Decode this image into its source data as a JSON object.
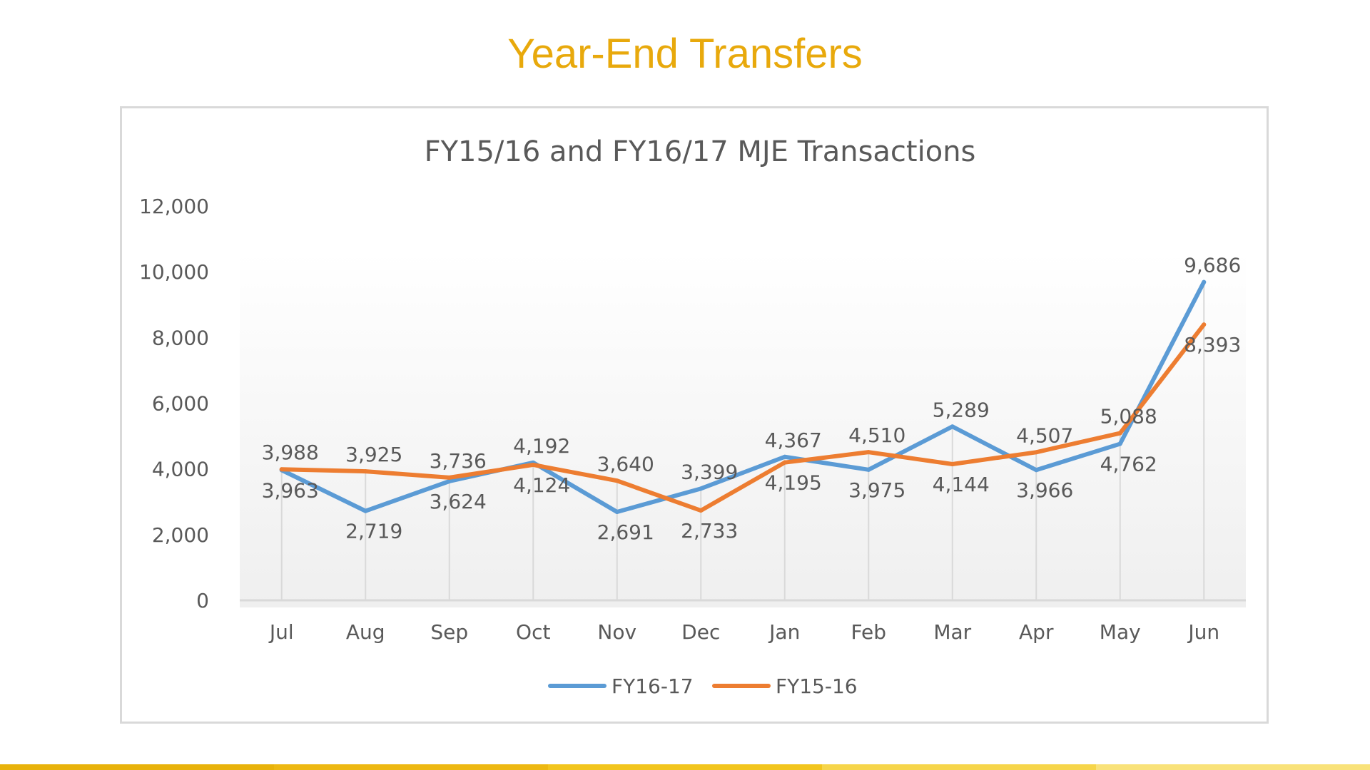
{
  "slide": {
    "title": "Year-End Transfers",
    "title_color": "#E8A90C",
    "bottom_bar_colors": [
      "#E8B20A",
      "#EDB812",
      "#F2C51E",
      "#F6D54A",
      "#F9E27A"
    ]
  },
  "chart_data": {
    "type": "line",
    "title": "FY15/16 and FY16/17 MJE Transactions",
    "xlabel": "",
    "ylabel": "",
    "categories": [
      "Jul",
      "Aug",
      "Sep",
      "Oct",
      "Nov",
      "Dec",
      "Jan",
      "Feb",
      "Mar",
      "Apr",
      "May",
      "Jun"
    ],
    "series": [
      {
        "name": "FY16-17",
        "color": "#5B9BD5",
        "values": [
          3963,
          2719,
          3624,
          4192,
          2691,
          3399,
          4367,
          3975,
          5289,
          3966,
          4762,
          9686
        ],
        "labels": [
          "3,963",
          "2,719",
          "3,624",
          "4,192",
          "2,691",
          "3,399",
          "4,367",
          "3,975",
          "5,289",
          "3,966",
          "4,762",
          "9,686"
        ]
      },
      {
        "name": "FY15-16",
        "color": "#ED7D31",
        "values": [
          3988,
          3925,
          3736,
          4124,
          3640,
          2733,
          4195,
          4510,
          4144,
          4507,
          5088,
          8393
        ],
        "labels": [
          "3,988",
          "3,925",
          "3,736",
          "4,124",
          "3,640",
          "2,733",
          "4,195",
          "4,510",
          "4,144",
          "4,507",
          "5,088",
          "8,393"
        ]
      }
    ],
    "ylim": [
      0,
      12000
    ],
    "yticks": [
      0,
      2000,
      4000,
      6000,
      8000,
      10000,
      12000
    ],
    "ytick_labels": [
      "0",
      "2,000",
      "4,000",
      "6,000",
      "8,000",
      "10,000",
      "12,000"
    ],
    "grid": "vertical drop lines",
    "legend_position": "bottom"
  }
}
